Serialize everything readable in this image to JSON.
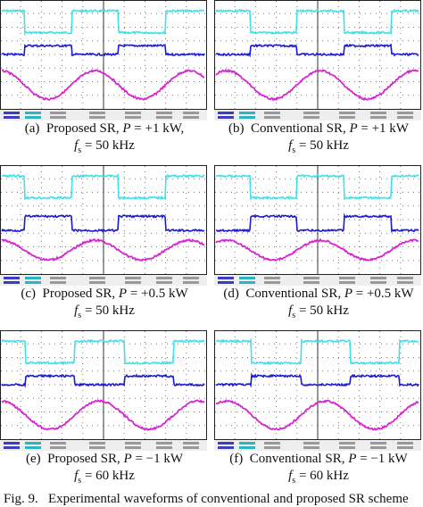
{
  "panels": [
    {
      "label": "(a)",
      "scheme": "Proposed SR,",
      "power_var": "P",
      "power": "= +1 kW,",
      "freq_var": "f",
      "freq_sub": "s",
      "freq": "= 50 kHz"
    },
    {
      "label": "(b)",
      "scheme": "Conventional SR,",
      "power_var": "P",
      "power": "= +1 kW",
      "freq_var": "f",
      "freq_sub": "s",
      "freq": "= 50 kHz"
    },
    {
      "label": "(c)",
      "scheme": "Proposed SR,",
      "power_var": "P",
      "power": "= +0.5 kW",
      "freq_var": "f",
      "freq_sub": "s",
      "freq": "= 50 kHz"
    },
    {
      "label": "(d)",
      "scheme": "Conventional SR,",
      "power_var": "P",
      "power": "= +0.5 kW",
      "freq_var": "f",
      "freq_sub": "s",
      "freq": "= 50 kHz"
    },
    {
      "label": "(e)",
      "scheme": "Proposed SR,",
      "power_var": "P",
      "power": "= −1 kW",
      "freq_var": "f",
      "freq_sub": "s",
      "freq": "= 60 kHz"
    },
    {
      "label": "(f)",
      "scheme": "Conventional SR,",
      "power_var": "P",
      "power": "= −1 kW",
      "freq_var": "f",
      "freq_sub": "s",
      "freq": "= 60 kHz"
    }
  ],
  "figure_caption": {
    "label": "Fig. 9.",
    "text": "Experimental waveforms of conventional and proposed SR scheme"
  }
}
